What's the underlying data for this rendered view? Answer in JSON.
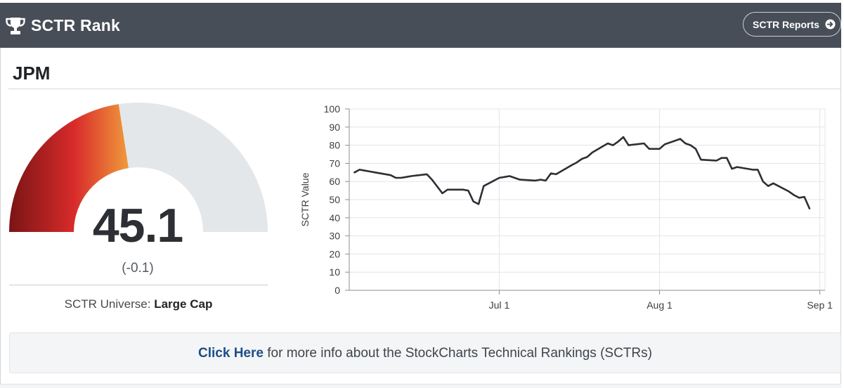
{
  "header": {
    "title": "SCTR Rank",
    "reports_button": "SCTR Reports",
    "bg_color": "#474e57"
  },
  "symbol": "JPM",
  "gauge": {
    "value": 45.1,
    "value_label": "45.1",
    "change_label": "(-0.1)",
    "min": 0,
    "max": 100,
    "universe_label": "SCTR Universe:",
    "universe_value": "Large Cap",
    "colors": {
      "fill_start": "#7a1414",
      "fill_mid": "#d92b2b",
      "fill_end": "#f09a3c",
      "track": "#e3e7ea"
    }
  },
  "info": {
    "link_text": "Click Here",
    "rest_text": " for more info about the StockCharts Technical Rankings (SCTRs)"
  },
  "chart_data": {
    "type": "line",
    "ylabel": "SCTR Value",
    "ylim": [
      0,
      100
    ],
    "yticks": [
      0,
      10,
      20,
      30,
      40,
      50,
      60,
      70,
      80,
      90,
      100
    ],
    "xlim": [
      "2024-06-02",
      "2024-09-02"
    ],
    "xticks": [
      {
        "date": "2024-07-01",
        "label": "Jul 1"
      },
      {
        "date": "2024-08-01",
        "label": "Aug 1"
      },
      {
        "date": "2024-09-01",
        "label": "Sep 1"
      }
    ],
    "grid": true,
    "line_color": "#2c2f33",
    "series": [
      {
        "x": [
          "2024-06-03",
          "2024-06-04",
          "2024-06-05",
          "2024-06-06",
          "2024-06-07",
          "2024-06-10",
          "2024-06-11",
          "2024-06-12",
          "2024-06-13",
          "2024-06-14",
          "2024-06-17",
          "2024-06-18",
          "2024-06-20",
          "2024-06-21",
          "2024-06-24",
          "2024-06-25",
          "2024-06-26",
          "2024-06-27",
          "2024-06-28",
          "2024-07-01",
          "2024-07-02",
          "2024-07-03",
          "2024-07-05",
          "2024-07-08",
          "2024-07-09",
          "2024-07-10",
          "2024-07-11",
          "2024-07-12",
          "2024-07-15",
          "2024-07-16",
          "2024-07-17",
          "2024-07-18",
          "2024-07-19",
          "2024-07-22",
          "2024-07-23",
          "2024-07-24",
          "2024-07-25",
          "2024-07-26",
          "2024-07-29",
          "2024-07-30",
          "2024-07-31",
          "2024-08-01",
          "2024-08-02",
          "2024-08-05",
          "2024-08-06",
          "2024-08-07",
          "2024-08-08",
          "2024-08-09",
          "2024-08-12",
          "2024-08-13",
          "2024-08-14",
          "2024-08-15",
          "2024-08-16",
          "2024-08-19",
          "2024-08-20",
          "2024-08-21",
          "2024-08-22",
          "2024-08-23",
          "2024-08-26",
          "2024-08-27",
          "2024-08-28",
          "2024-08-29",
          "2024-08-30"
        ],
        "y": [
          65,
          66.5,
          66,
          65.5,
          65,
          63.5,
          62,
          62,
          62.5,
          63,
          64,
          61,
          53.5,
          55.5,
          55.5,
          55,
          49,
          47.5,
          57.5,
          62,
          62.5,
          63,
          61,
          60.5,
          61,
          60.5,
          64.5,
          64,
          69,
          70.5,
          72.5,
          73.5,
          76,
          81,
          80,
          82,
          84.5,
          80,
          81,
          78,
          78,
          78,
          80.5,
          83.5,
          81,
          80,
          78,
          72,
          71.5,
          73,
          73,
          67,
          68,
          66.5,
          66.5,
          60,
          57.5,
          59,
          54.5,
          52.5,
          51,
          51.5,
          45.1
        ]
      }
    ]
  }
}
